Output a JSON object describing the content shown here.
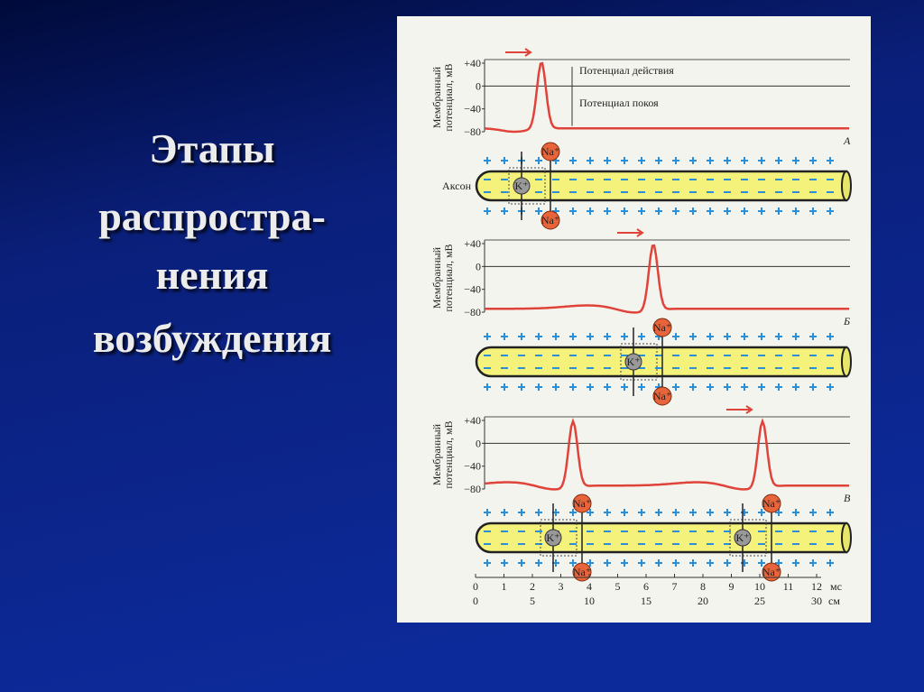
{
  "title": [
    "Этапы",
    "распростра-",
    "нения",
    "возбуждения"
  ],
  "figure": {
    "y_axis_label": [
      "Мембранный",
      "потенциал, мВ"
    ],
    "y_ticks": [
      "+40",
      "0",
      "−40",
      "−80"
    ],
    "action_potential": "Потенциал действия",
    "resting_potential": "Потенциал покоя",
    "axon": "Аксон",
    "ion_na": "Na⁺",
    "ion_k": "K⁺",
    "panels": [
      {
        "letter": "А"
      },
      {
        "letter": "Б"
      },
      {
        "letter": "В"
      }
    ],
    "x_ticks_ms": [
      "0",
      "1",
      "2",
      "3",
      "4",
      "5",
      "6",
      "7",
      "8",
      "9",
      "10",
      "11",
      "12"
    ],
    "x_unit_ms": "мс",
    "x_ticks_cm": [
      "0",
      "5",
      "10",
      "15",
      "20",
      "25",
      "30"
    ],
    "x_unit_cm": "см"
  }
}
